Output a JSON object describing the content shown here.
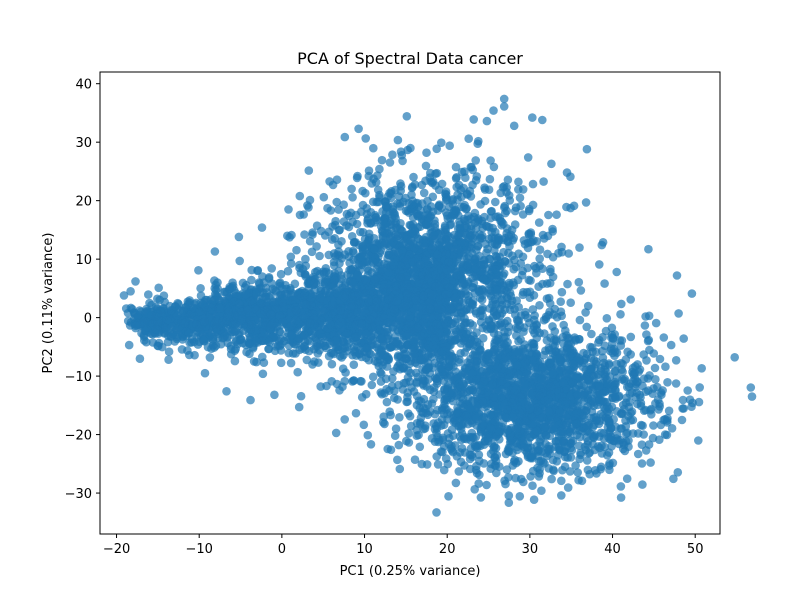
{
  "chart_data": {
    "type": "scatter",
    "title": "PCA of Spectral Data cancer",
    "xlabel": "PC1 (0.25% variance)",
    "ylabel": "PC2 (0.11% variance)",
    "xlim": [
      -22,
      53
    ],
    "ylim": [
      -37,
      42
    ],
    "xticks": [
      -20,
      -10,
      0,
      10,
      20,
      30,
      40,
      50
    ],
    "yticks": [
      -30,
      -20,
      -10,
      0,
      10,
      20,
      30,
      40
    ],
    "xtick_labels": [
      "−20",
      "−10",
      "0",
      "10",
      "20",
      "30",
      "40",
      "50"
    ],
    "ytick_labels": [
      "−30",
      "−20",
      "−10",
      "0",
      "10",
      "20",
      "30",
      "40"
    ],
    "grid": false,
    "series": [
      {
        "color": "#1f77b4",
        "alpha": 0.7,
        "point_count": "dense cloud (several thousand points)",
        "x": [
          -19.1,
          -18.3,
          -17.7,
          -17.2,
          -16.4,
          -15.8,
          -14.9,
          -13.7,
          -12.5,
          -11.2,
          -10.1,
          -9.3,
          -8.1,
          -6.7,
          -5.2,
          -3.8,
          -2.4,
          -0.9,
          0.8,
          2.1,
          3.4,
          4.7,
          6.2,
          7.6,
          9.1,
          10.4,
          11.8,
          13.2,
          14.6,
          16.1,
          17.5,
          18.9,
          20.3,
          21.4,
          22.6,
          23.9,
          24.8,
          25.6,
          26.9,
          27.4,
          28.1,
          29.2,
          30.3,
          31.4,
          32.6,
          33.8,
          34.9,
          35.9,
          36.8,
          37.9,
          38.7,
          39.6,
          40.5,
          41.3,
          42.2,
          43.1,
          44.0,
          44.9,
          45.7,
          46.4,
          47.1,
          47.8,
          48.4,
          49.6,
          18.7,
          26.9,
          31.5,
          29.8,
          23.2,
          36.9,
          44.1,
          38.4,
          46.2,
          33.8,
          41.5,
          28.6,
          20.1,
          15.3,
          10.2,
          5.4,
          -2.3,
          -8.7,
          -13.4,
          -5.1,
          3.7,
          12.6,
          24.3,
          35.2,
          42.8
        ],
        "y": [
          3.8,
          4.5,
          6.2,
          -1.3,
          -4.2,
          0.4,
          5.1,
          -7.2,
          2.3,
          -6.4,
          8.1,
          -9.5,
          11.3,
          -12.6,
          13.8,
          -14.1,
          15.4,
          -13.2,
          18.5,
          -15.3,
          20.1,
          -11.8,
          22.7,
          -17.4,
          23.9,
          -20.1,
          25.4,
          -22.6,
          26.8,
          -24.3,
          28.2,
          -25.1,
          29.4,
          -26.3,
          30.6,
          -26.9,
          33.6,
          35.4,
          37.4,
          -27.3,
          32.8,
          -28.1,
          34.2,
          -29.6,
          26.3,
          -30.4,
          24.1,
          -27.8,
          19.7,
          -26.1,
          12.4,
          -25.3,
          7.8,
          -21.4,
          3.1,
          -19.8,
          0.2,
          -20.6,
          -15.2,
          -8.4,
          -4.7,
          7.2,
          -17.5,
          4.1,
          -33.3,
          36.1,
          33.8,
          27.4,
          33.9,
          28.8,
          -2.9,
          9.1,
          -3.4,
          -27.9,
          -22.8,
          21.9,
          -19.8,
          -16.4,
          -13.1,
          -11.7,
          -9.6,
          -6.8,
          -3.1,
          9.7,
          14.2,
          19.1,
          -1.8,
          -11.2,
          -13.6
        ]
      }
    ]
  }
}
